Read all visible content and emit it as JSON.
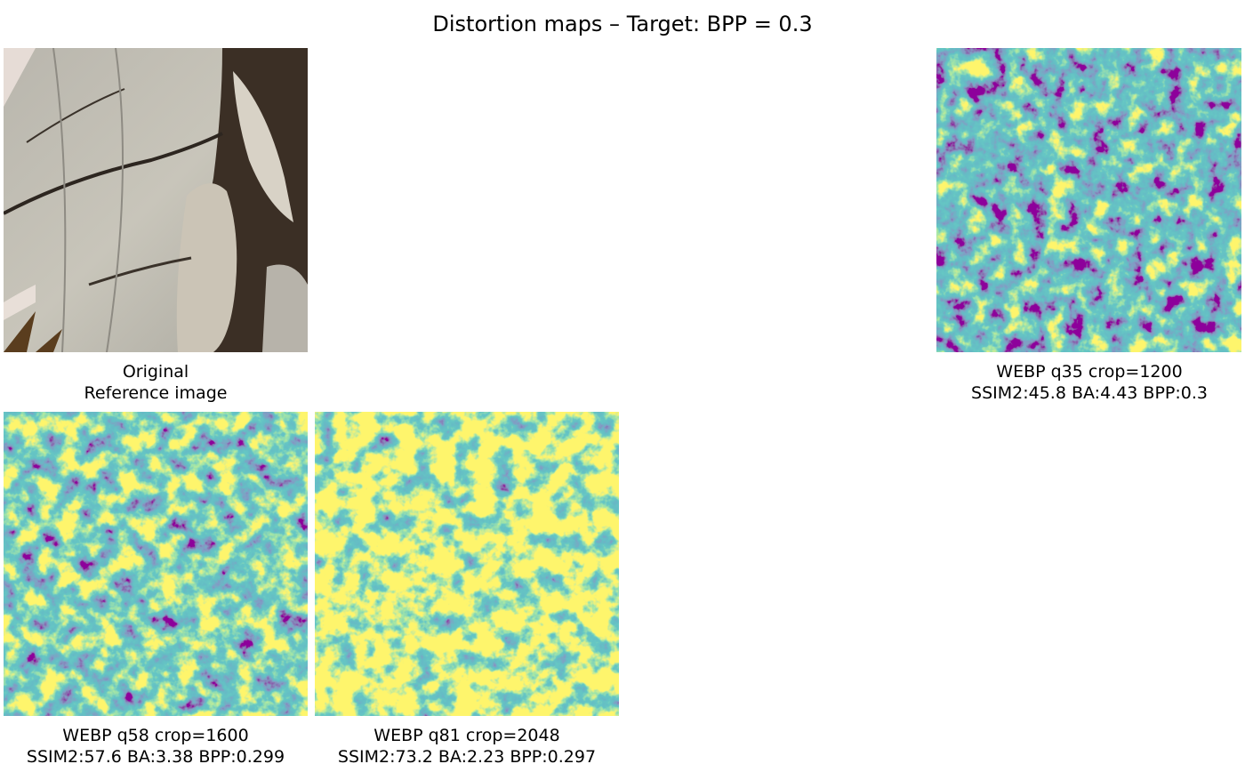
{
  "title": "Distortion maps – Target: BPP = 0.3",
  "panels": [
    {
      "title": "Original",
      "subtitle": "Reference image"
    },
    {
      "title": "WEBP q35 crop=1200",
      "subtitle": "SSIM2:45.8 BA:4.43 BPP:0.3"
    },
    {
      "title": "WEBP q58 crop=1600",
      "subtitle": "SSIM2:57.6 BA:3.38 BPP:0.299"
    },
    {
      "title": "WEBP q81 crop=2048",
      "subtitle": "SSIM2:73.2 BA:2.23 BPP:0.297"
    }
  ]
}
